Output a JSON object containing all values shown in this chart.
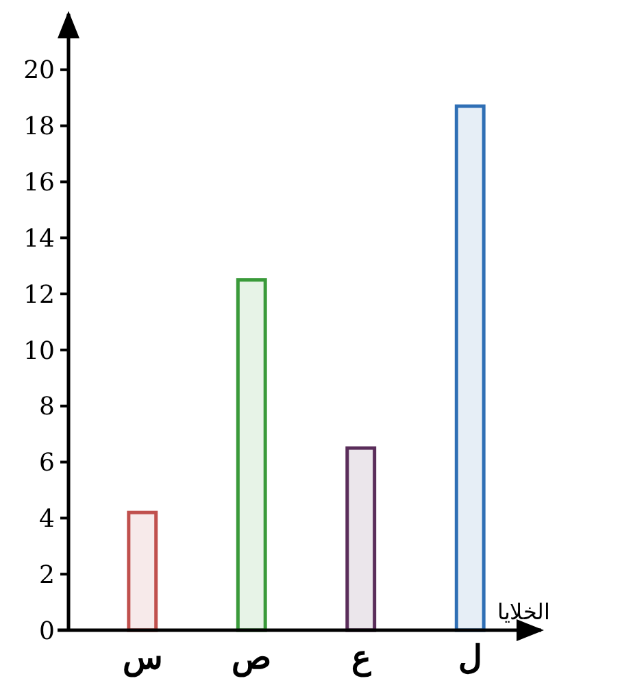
{
  "chart_data": {
    "type": "bar",
    "xlabel": "الخلايا",
    "categories": [
      "س",
      "ص",
      "ع",
      "ل"
    ],
    "values": [
      4.2,
      12.5,
      6.5,
      18.7
    ],
    "colors": [
      "#c0504d",
      "#3a9a3a",
      "#5a2d5a",
      "#2f6fb5"
    ],
    "ylim": [
      0,
      22
    ],
    "yticks": [
      0,
      2,
      4,
      6,
      8,
      10,
      12,
      14,
      16,
      18,
      20
    ]
  }
}
